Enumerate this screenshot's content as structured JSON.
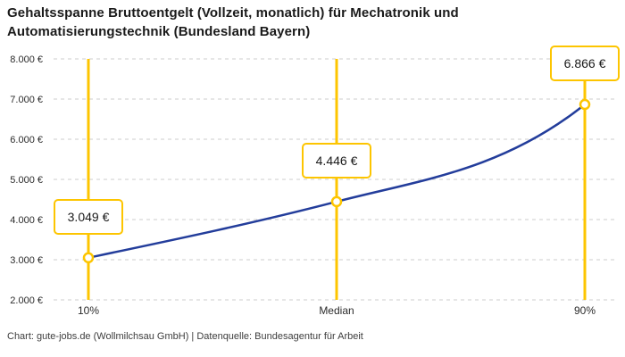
{
  "title": "Gehaltsspanne Bruttoentgelt (Vollzeit, monatlich) für Mechatronik und Automatisierungstechnik (Bundesland Bayern)",
  "footer": "Chart: gute-jobs.de (Wollmilchsau GmbH) | Datenquelle: Bundesagentur für Arbeit",
  "colors": {
    "accent_yellow": "#fdc500",
    "line_blue": "#233d9b",
    "grid": "#cccccc",
    "title_text": "#1a1a1a",
    "axis_text": "#2b2b2b",
    "background": "#ffffff"
  },
  "chart_data": {
    "type": "line",
    "categories": [
      "10%",
      "Median",
      "90%"
    ],
    "values": [
      3049,
      4446,
      6866
    ],
    "value_labels": [
      "3.049 €",
      "4.446 €",
      "6.866 €"
    ],
    "series": [
      {
        "name": "Bruttoentgelt",
        "values": [
          3049,
          4446,
          6866
        ]
      }
    ],
    "title": "Gehaltsspanne Bruttoentgelt (Vollzeit, monatlich) für Mechatronik und Automatisierungstechnik (Bundesland Bayern)",
    "xlabel": "",
    "ylabel": "",
    "ylim": [
      2000,
      8000
    ],
    "ytick_step": 1000,
    "ytick_labels": [
      "2.000 €",
      "3.000 €",
      "4.000 €",
      "5.000 €",
      "6.000 €",
      "7.000 €",
      "8.000 €"
    ],
    "grid": "horizontal-dashed",
    "legend_position": "none",
    "annotations": "Each percentile has a vertical yellow marker line with a white callout box showing the value; data points drawn as white circles with yellow ring."
  }
}
